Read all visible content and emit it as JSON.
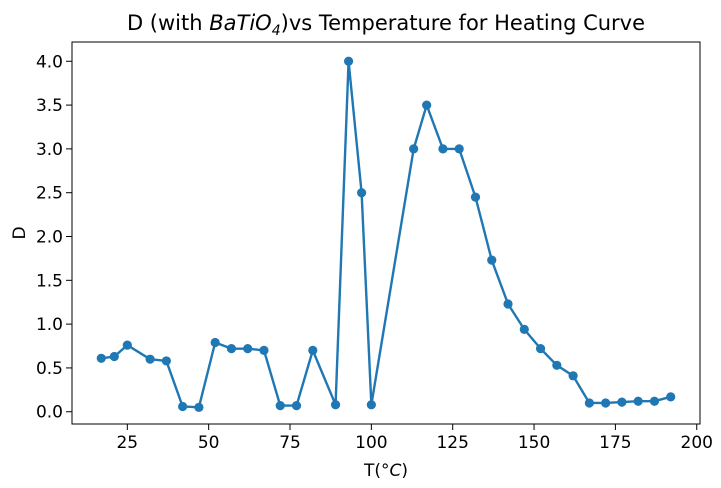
{
  "chart_data": {
    "type": "line",
    "title": "D (with BaTiO4)vs Temperature for Heating Curve",
    "title_parts": {
      "prefix": "D (with ",
      "formula_main": "BaTiO",
      "formula_sub": "4",
      "suffix": ")vs Temperature for Heating Curve"
    },
    "xlabel": "T(°C)",
    "xlabel_parts": {
      "prefix": "T(",
      "unit": "°C",
      "suffix": ")"
    },
    "ylabel": "D",
    "xlim": [
      8.0,
      201.0
    ],
    "ylim": [
      -0.14,
      4.22
    ],
    "xticks": [
      25,
      50,
      75,
      100,
      125,
      150,
      175,
      200
    ],
    "xtick_labels": [
      "25",
      "50",
      "75",
      "100",
      "125",
      "150",
      "175",
      "200"
    ],
    "yticks": [
      0.0,
      0.5,
      1.0,
      1.5,
      2.0,
      2.5,
      3.0,
      3.5,
      4.0
    ],
    "ytick_labels": [
      "0.0",
      "0.5",
      "1.0",
      "1.5",
      "2.0",
      "2.5",
      "3.0",
      "3.5",
      "4.0"
    ],
    "grid": false,
    "legend": "none",
    "colors": {
      "series": "#1f77b4",
      "axes": "#000000",
      "background": "#ffffff"
    },
    "series": [
      {
        "marker": "circle",
        "x": [
          17,
          21,
          25,
          32,
          37,
          42,
          47,
          52,
          57,
          62,
          67,
          72,
          77,
          82,
          89,
          93,
          97,
          100,
          113,
          117,
          122,
          127,
          132,
          137,
          142,
          147,
          152,
          157,
          162,
          167,
          172,
          177,
          182,
          187,
          192
        ],
        "y": [
          0.61,
          0.63,
          0.76,
          0.6,
          0.58,
          0.06,
          0.05,
          0.79,
          0.72,
          0.72,
          0.7,
          0.07,
          0.07,
          0.7,
          0.08,
          4.0,
          2.5,
          0.08,
          3.0,
          3.5,
          3.0,
          3.0,
          2.45,
          1.73,
          1.23,
          0.94,
          0.72,
          0.53,
          0.41,
          0.1,
          0.1,
          0.11,
          0.12,
          0.12,
          0.17
        ]
      }
    ]
  }
}
